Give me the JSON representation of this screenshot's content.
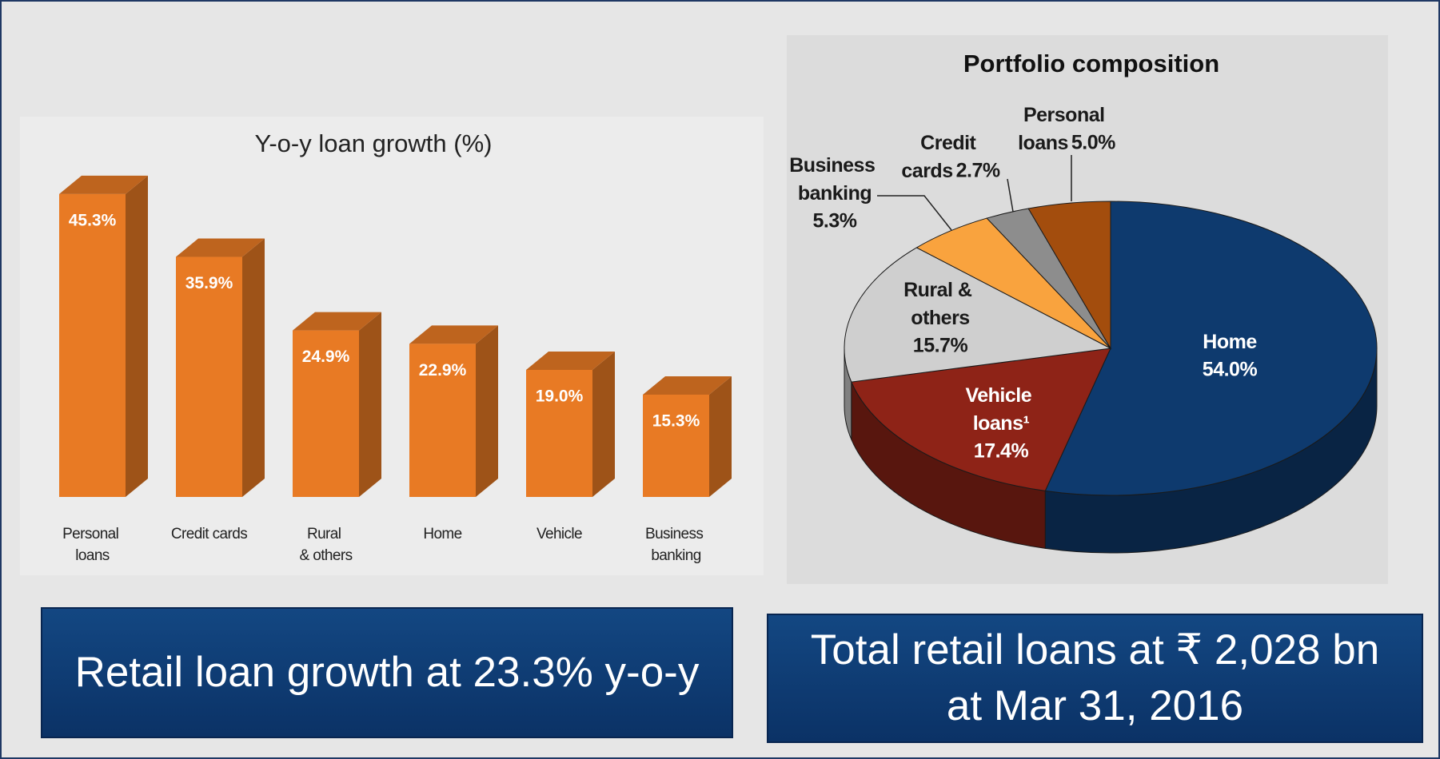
{
  "chart_data": [
    {
      "type": "bar",
      "title": "Y-o-y loan growth (%)",
      "categories": [
        "Personal loans",
        "Credit cards",
        "Rural & others",
        "Home",
        "Vehicle",
        "Business banking"
      ],
      "values": [
        45.3,
        35.9,
        24.9,
        22.9,
        19.0,
        15.3
      ],
      "value_labels": [
        "45.3%",
        "35.9%",
        "24.9%",
        "22.9%",
        "19.0%",
        "15.3%"
      ],
      "color": "#e87a24"
    },
    {
      "type": "pie",
      "title": "Portfolio composition",
      "categories": [
        "Home",
        "Vehicle loans¹",
        "Rural & others",
        "Business banking",
        "Credit cards",
        "Personal loans"
      ],
      "values": [
        54.0,
        17.4,
        15.7,
        5.3,
        2.7,
        5.0
      ],
      "value_labels": [
        "54.0%",
        "17.4%",
        "15.7%",
        "5.3%",
        "2.7%",
        "5.0%"
      ],
      "colors": [
        "#0e3a6e",
        "#8e2317",
        "#cfcfcf",
        "#f9a33e",
        "#8d8d8d",
        "#a34d0d"
      ]
    }
  ],
  "banners": [
    "Retail loan growth at 23.3% y-o-y",
    "Total retail loans at ₹ 2,028 bn at Mar 31, 2016"
  ]
}
